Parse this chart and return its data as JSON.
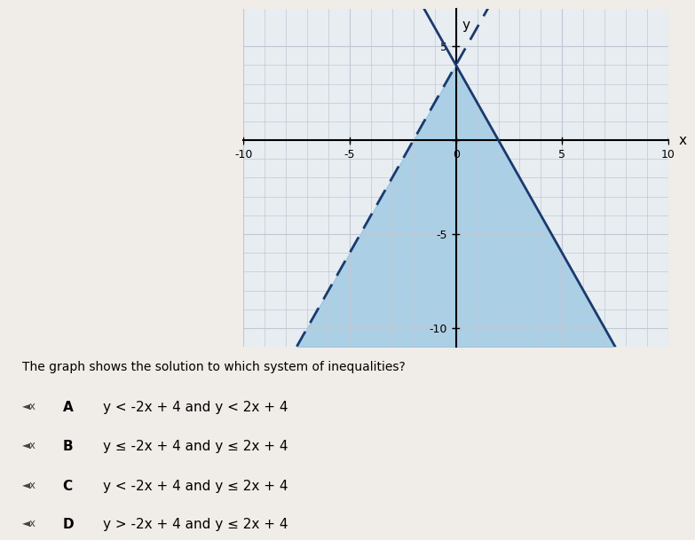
{
  "xlabel": "x",
  "ylabel": "y",
  "xlim": [
    -10,
    10
  ],
  "ylim": [
    -11,
    7
  ],
  "xticks": [
    -10,
    -5,
    0,
    5,
    10
  ],
  "yticks": [
    -10,
    -5,
    0,
    5
  ],
  "grid_color": "#c0c8d4",
  "graph_bg_color": "#e8edf2",
  "outer_bg_color": "#f0ece8",
  "shade_color": "#7ab8dc",
  "shade_alpha": 0.55,
  "line1_slope": -2,
  "line1_intercept": 4,
  "line1_style": "solid",
  "line1_color": "#1a3a6e",
  "line2_slope": 2,
  "line2_intercept": 4,
  "line2_style": "dashed",
  "line2_color": "#1a3a6e",
  "line_width": 2.0,
  "question": "The graph shows the solution to which system of inequalities?",
  "options": [
    [
      "A",
      "y < -2x + 4 and y < 2x + 4"
    ],
    [
      "B",
      "y ≤ -2x + 4 and y ≤ 2x + 4"
    ],
    [
      "C",
      "y < -2x + 4 and y ≤ 2x + 4"
    ],
    [
      "D",
      "y > -2x + 4 and y ≤ 2x + 4"
    ]
  ],
  "option_fontsize": 11,
  "question_fontsize": 10,
  "axis_label_fontsize": 11,
  "tick_fontsize": 9
}
